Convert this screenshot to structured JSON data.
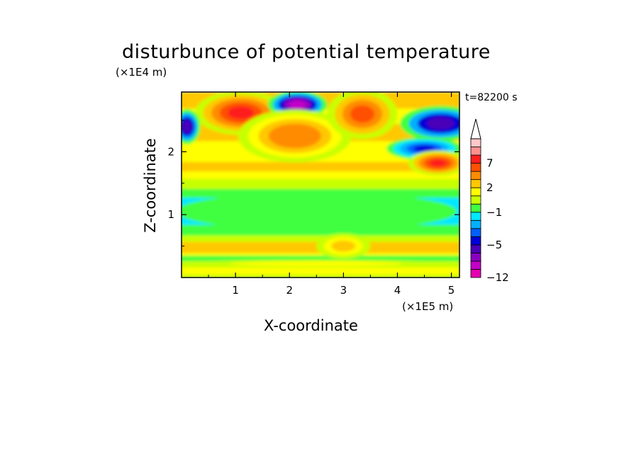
{
  "chart_data": {
    "type": "heatmap",
    "title": "disturbunce of potential temperature",
    "xlabel": "X-coordinate",
    "ylabel": "Z-coordinate",
    "x_unit": "(×1E5 m)",
    "y_unit": "(×1E4 m)",
    "time_label": "t=82200 s",
    "xlim": [
      0,
      5.15
    ],
    "ylim": [
      0,
      2.95
    ],
    "x_ticks": [
      1,
      2,
      3,
      4,
      5
    ],
    "y_ticks": [
      1,
      2
    ],
    "colorbar": {
      "tick_labels": [
        "7",
        "2",
        "−1",
        "−5",
        "−12"
      ],
      "tick_values": [
        7,
        2,
        -1,
        -5,
        -12
      ],
      "levels": [
        -12,
        -10,
        -8,
        -6,
        -5,
        -4,
        -3,
        -2,
        -1,
        0,
        1,
        2,
        3,
        5,
        7,
        9,
        11
      ],
      "colors": [
        "#e600b0",
        "#c400c8",
        "#8a00c0",
        "#4a00b8",
        "#0000d8",
        "#0060ff",
        "#00b0ff",
        "#00e8ff",
        "#40ff40",
        "#c8ff00",
        "#ffff00",
        "#ffc800",
        "#ff8c00",
        "#ff5000",
        "#ff1e1e",
        "#ff9090",
        "#ffc8c8"
      ],
      "extend": "max"
    },
    "features": [
      {
        "x": 1.1,
        "z": 2.62,
        "value": 7
      },
      {
        "x": 2.15,
        "z": 2.75,
        "value": -9
      },
      {
        "x": 2.1,
        "z": 2.25,
        "value": 4
      },
      {
        "x": 3.35,
        "z": 2.6,
        "value": 5
      },
      {
        "x": 0.1,
        "z": 2.4,
        "value": -6
      },
      {
        "x": 4.8,
        "z": 2.45,
        "value": -6
      },
      {
        "x": 4.5,
        "z": 2.05,
        "value": -5
      },
      {
        "x": 4.75,
        "z": 1.82,
        "value": 7
      },
      {
        "x": 2.5,
        "z": 1.05,
        "value": -1
      },
      {
        "x": 3.0,
        "z": 0.5,
        "value": 2
      },
      {
        "x": 2.5,
        "z": 0.22,
        "value": 1
      }
    ]
  }
}
